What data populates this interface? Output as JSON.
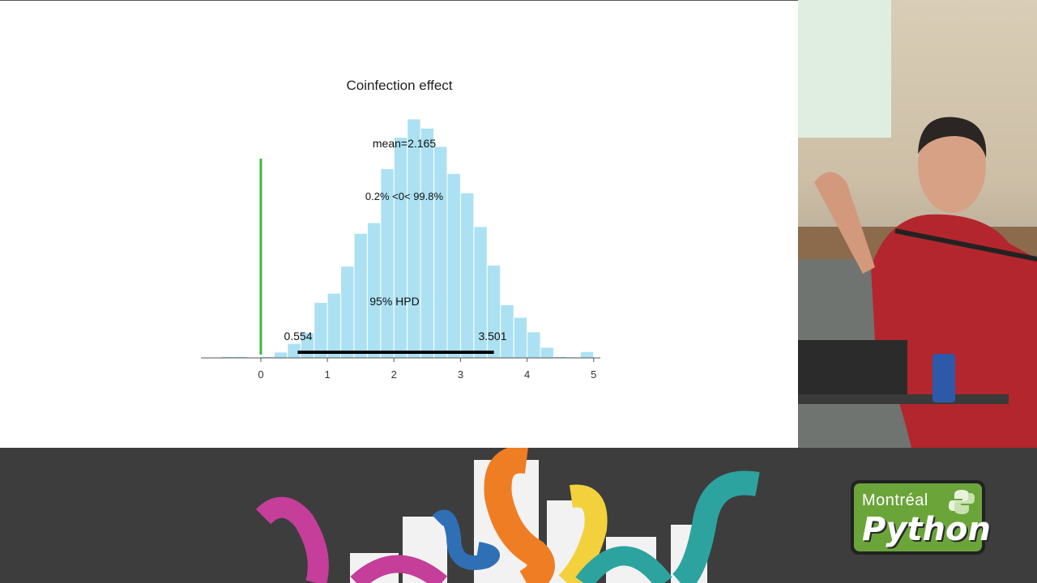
{
  "chart_data": {
    "type": "bar",
    "title": "Coinfection effect",
    "bin_edges": [
      -0.7,
      -0.6,
      -0.5,
      -0.4,
      -0.3,
      -0.2,
      -0.1,
      0.0,
      0.1,
      0.2,
      0.3,
      0.4,
      0.5,
      0.6,
      0.7,
      0.8,
      0.9,
      1.0,
      1.1,
      1.2,
      1.3,
      1.4,
      1.5,
      1.6,
      1.7,
      1.8,
      1.9,
      2.0,
      2.1,
      2.2,
      2.3,
      2.4,
      2.5,
      2.6,
      2.7,
      2.8,
      2.9,
      3.0,
      3.1,
      3.2,
      3.3,
      3.4,
      3.5,
      3.6,
      3.7,
      3.8,
      3.9,
      4.0,
      4.1,
      4.2,
      4.3,
      4.4,
      4.5,
      4.6,
      4.7,
      4.8,
      4.9
    ],
    "bin_step": 0.2,
    "bins": [
      {
        "x0": -0.6,
        "height": 0.3
      },
      {
        "x0": -0.4,
        "height": 0.3
      },
      {
        "x0": 0.0,
        "height": 0.3
      },
      {
        "x0": 0.2,
        "height": 1.2
      },
      {
        "x0": 0.4,
        "height": 3.0
      },
      {
        "x0": 0.6,
        "height": 5.2
      },
      {
        "x0": 0.8,
        "height": 11.5
      },
      {
        "x0": 1.0,
        "height": 13.4
      },
      {
        "x0": 1.2,
        "height": 19.0
      },
      {
        "x0": 1.4,
        "height": 25.8
      },
      {
        "x0": 1.6,
        "height": 28.0
      },
      {
        "x0": 1.8,
        "height": 39.2
      },
      {
        "x0": 2.0,
        "height": 45.7
      },
      {
        "x0": 2.2,
        "height": 49.5
      },
      {
        "x0": 2.4,
        "height": 47.6
      },
      {
        "x0": 2.6,
        "height": 43.8
      },
      {
        "x0": 2.8,
        "height": 38.2
      },
      {
        "x0": 3.0,
        "height": 34.2
      },
      {
        "x0": 3.2,
        "height": 27.2
      },
      {
        "x0": 3.4,
        "height": 19.2
      },
      {
        "x0": 3.6,
        "height": 11.0
      },
      {
        "x0": 3.8,
        "height": 8.4
      },
      {
        "x0": 4.0,
        "height": 5.4
      },
      {
        "x0": 4.2,
        "height": 2.2
      },
      {
        "x0": 4.4,
        "height": 0.3
      },
      {
        "x0": 4.6,
        "height": 0.2
      },
      {
        "x0": 4.8,
        "height": 1.3
      }
    ],
    "xlim": [
      -0.9,
      5.1
    ],
    "ylim": [
      0,
      52
    ],
    "xticks": [
      0,
      1,
      2,
      3,
      4,
      5
    ],
    "xtick_labels": [
      "0",
      "1",
      "2",
      "3",
      "4",
      "5"
    ],
    "reference_value": 0,
    "reference_color": "#3cb93c",
    "bar_color": "#abe1f2",
    "hpd": {
      "low": 0.554,
      "high": 3.501,
      "low_label": "0.554",
      "high_label": "3.501",
      "label": "95% HPD"
    },
    "annotations": {
      "mean": "mean=2.165",
      "ref_split": "0.2% <0< 99.8%"
    }
  },
  "banner": {
    "logo_line1": "Montréal",
    "logo_line2": "Python"
  }
}
